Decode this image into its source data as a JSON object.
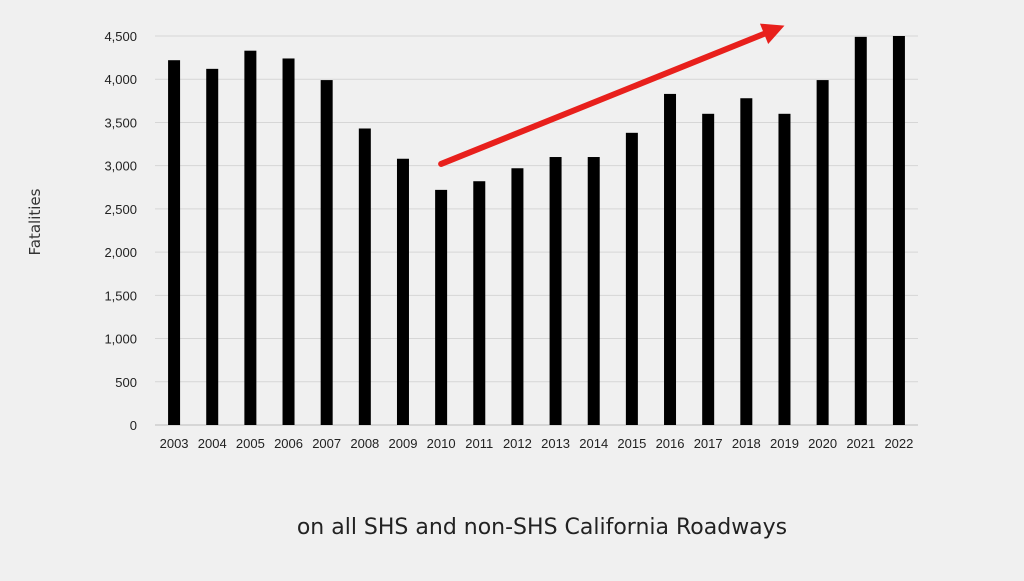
{
  "chart_data": {
    "type": "bar",
    "title": "",
    "ylabel": "Fatalities",
    "xlabel": "",
    "caption": "on all SHS and non-SHS California Roadways",
    "categories": [
      "2003",
      "2004",
      "2005",
      "2006",
      "2007",
      "2008",
      "2009",
      "2010",
      "2011",
      "2012",
      "2013",
      "2014",
      "2015",
      "2016",
      "2017",
      "2018",
      "2019",
      "2020",
      "2021",
      "2022"
    ],
    "values": [
      4220,
      4120,
      4330,
      4240,
      3990,
      3430,
      3080,
      2720,
      2820,
      2970,
      3100,
      3100,
      3380,
      3830,
      3600,
      3780,
      3600,
      3990,
      4490,
      4500
    ],
    "ylim": [
      0,
      4500
    ],
    "yticks": [
      0,
      500,
      1000,
      1500,
      2000,
      2500,
      3000,
      3500,
      4000,
      4500
    ],
    "ytick_labels": [
      "0",
      "500",
      "1,000",
      "1,500",
      "2,000",
      "2,500",
      "3,000",
      "3,500",
      "4,000",
      "4,500"
    ],
    "grid": true,
    "bar_color": "#000000",
    "annotation": {
      "type": "arrow",
      "color": "#e8201c",
      "from": {
        "x": "2010",
        "y": 3020
      },
      "to": {
        "x": "2019",
        "y": 4620
      }
    }
  }
}
